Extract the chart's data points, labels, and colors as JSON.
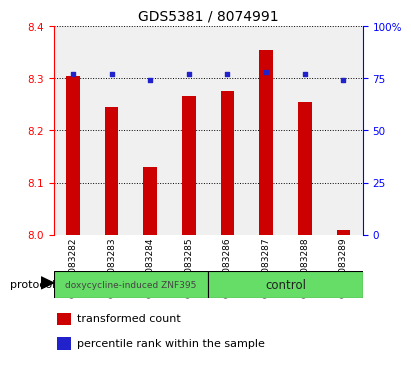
{
  "title": "GDS5381 / 8074991",
  "categories": [
    "GSM1083282",
    "GSM1083283",
    "GSM1083284",
    "GSM1083285",
    "GSM1083286",
    "GSM1083287",
    "GSM1083288",
    "GSM1083289"
  ],
  "red_values": [
    8.305,
    8.245,
    8.13,
    8.265,
    8.275,
    8.355,
    8.255,
    8.01
  ],
  "blue_values": [
    77,
    77,
    74,
    77,
    77,
    78,
    77,
    74
  ],
  "ylim_left": [
    8.0,
    8.4
  ],
  "ylim_right": [
    0,
    100
  ],
  "yticks_left": [
    8.0,
    8.1,
    8.2,
    8.3,
    8.4
  ],
  "yticks_right": [
    0,
    25,
    50,
    75,
    100
  ],
  "yticklabels_right": [
    "0",
    "25",
    "50",
    "75",
    "100%"
  ],
  "bar_color": "#cc0000",
  "dot_color": "#2222cc",
  "group1_label": "doxycycline-induced ZNF395",
  "group2_label": "control",
  "group1_count": 4,
  "group2_count": 4,
  "protocol_label": "protocol",
  "legend_red": "transformed count",
  "legend_blue": "percentile rank within the sample",
  "plot_bg": "#f0f0f0",
  "xtick_bg": "#d8d8d8",
  "group_color": "#66dd66",
  "bar_width": 0.35,
  "title_fontsize": 10,
  "tick_fontsize": 7.5,
  "legend_fontsize": 8
}
